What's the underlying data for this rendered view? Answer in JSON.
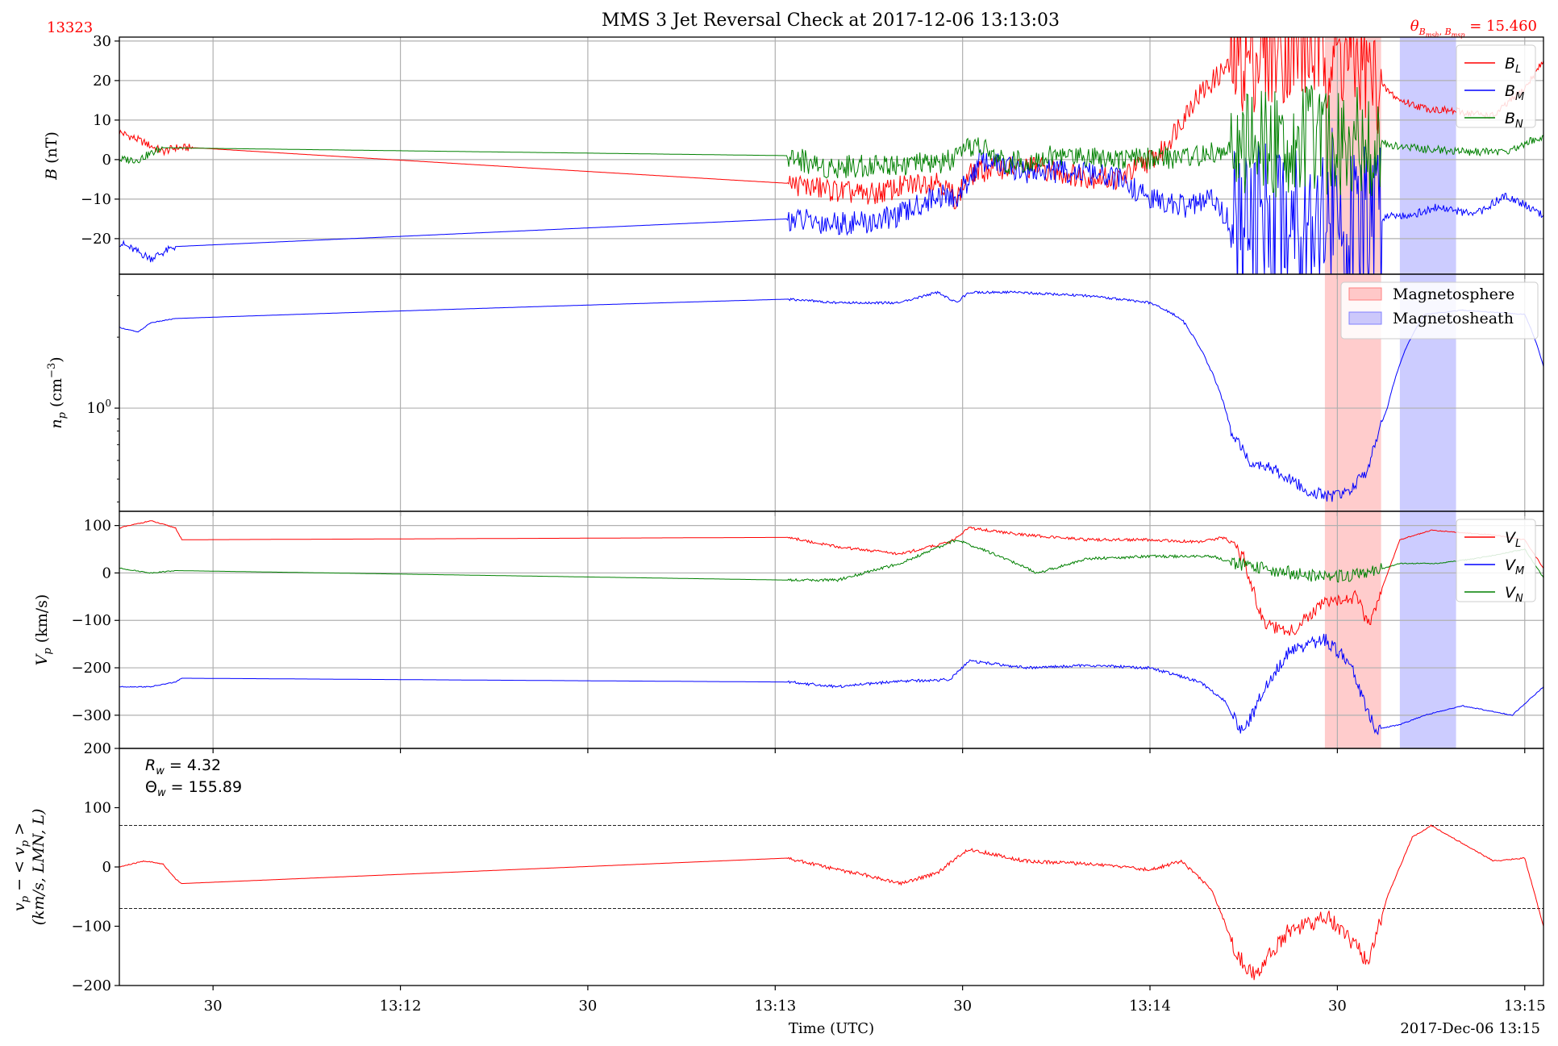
{
  "figure": {
    "title": "MMS 3 Jet Reversal Check at 2017-12-06 13:13:03",
    "event_id": "13323",
    "theta_annotation": "θ_{B_{msh}, B_{msp}} = 15.460",
    "theta_value": 15.46,
    "xlabel": "Time (UTC)",
    "date_label": "2017-Dec-06 13:15"
  },
  "colors": {
    "red": "#ff0000",
    "blue": "#0000ff",
    "green": "#008000",
    "magnetosphere": "#ff8080",
    "magnetosheath": "#8080ff",
    "grid": "#b0b0b0"
  },
  "chart_data": [
    {
      "type": "line",
      "panel": "magnetic-field",
      "ylabel": "B (nT)",
      "ylim": [
        -29,
        31
      ],
      "yticks": [
        -20,
        -10,
        0,
        10,
        20,
        30
      ],
      "ytick_labels": [
        "−20",
        "−10",
        "0",
        "10",
        "20",
        "30"
      ],
      "xlim": [
        "13:11:15",
        "13:15:03"
      ],
      "xticks": [
        "13:11:30",
        "13:12:00",
        "13:12:30",
        "13:13:00",
        "13:13:30",
        "13:14:00",
        "13:14:30",
        "13:15:00"
      ],
      "xtick_labels": [
        "30",
        "13:12",
        "30",
        "13:13",
        "30",
        "13:14",
        "30",
        "13:15"
      ],
      "grid": true,
      "legend_position": "top-right",
      "series": [
        {
          "name": "B_L",
          "color": "red",
          "x": [
            "13:11:15",
            "13:11:18",
            "13:11:22",
            "13:11:24",
            "13:11:27",
            "13:12:30",
            "13:13:02",
            "13:13:10",
            "13:13:15",
            "13:13:20",
            "13:13:26",
            "13:13:29",
            "13:13:31",
            "13:13:35",
            "13:13:42",
            "13:13:48",
            "13:13:55",
            "13:13:58",
            "13:14:02",
            "13:14:05",
            "13:14:07",
            "13:14:12",
            "13:14:20",
            "13:14:28",
            "13:14:33",
            "13:14:36",
            "13:14:40",
            "13:14:44",
            "13:14:50",
            "13:14:55",
            "13:15:00",
            "13:15:03"
          ],
          "y": [
            7,
            5,
            2,
            3,
            3,
            -3,
            -6,
            -8,
            -9,
            -7,
            -5,
            -10,
            -4,
            -2,
            -2,
            -4,
            -5,
            -2,
            2,
            10,
            15,
            23,
            28,
            27,
            25,
            20,
            15,
            13,
            12,
            11,
            18,
            25
          ]
        },
        {
          "name": "B_M",
          "color": "blue",
          "x": [
            "13:11:15",
            "13:11:20",
            "13:11:24",
            "13:13:02",
            "13:13:08",
            "13:13:15",
            "13:13:20",
            "13:13:26",
            "13:13:29",
            "13:13:33",
            "13:13:40",
            "13:13:48",
            "13:13:55",
            "13:14:00",
            "13:14:06",
            "13:14:10",
            "13:14:15",
            "13:14:20",
            "13:14:26",
            "13:14:30",
            "13:14:33",
            "13:14:38",
            "13:14:42",
            "13:14:46",
            "13:14:52",
            "13:14:57",
            "13:15:03"
          ],
          "y": [
            -21,
            -25,
            -22,
            -15,
            -16,
            -16,
            -14,
            -9,
            -10,
            0,
            -3,
            -3,
            -5,
            -10,
            -12,
            -10,
            -20,
            -14,
            -13,
            -14,
            -20,
            -14,
            -14,
            -12,
            -14,
            -9,
            -14
          ]
        },
        {
          "name": "B_N",
          "color": "green",
          "x": [
            "13:11:15",
            "13:11:18",
            "13:11:22",
            "13:13:02",
            "13:13:08",
            "13:13:20",
            "13:13:26",
            "13:13:29",
            "13:13:32",
            "13:13:37",
            "13:13:45",
            "13:13:52",
            "13:13:58",
            "13:14:08",
            "13:14:15",
            "13:14:25",
            "13:14:33",
            "13:14:42",
            "13:14:50",
            "13:14:57",
            "13:15:03"
          ],
          "y": [
            0,
            0,
            3,
            1,
            -2,
            -1,
            -1,
            0,
            4,
            -1,
            1,
            1,
            0,
            1,
            3,
            5,
            5,
            3,
            2,
            2,
            6
          ]
        }
      ]
    },
    {
      "type": "line",
      "panel": "proton-density",
      "ylabel": "n_p (cm^-3)",
      "yscale": "log",
      "ylim": [
        0.365,
        3.7
      ],
      "yticks": [
        1
      ],
      "ytick_labels": [
        "10^0"
      ],
      "xlim": [
        "13:11:15",
        "13:15:03"
      ],
      "grid": true,
      "legend_position": "top-right",
      "legend": [
        {
          "name": "Magnetosphere",
          "color": "magnetosphere"
        },
        {
          "name": "Magnetosheath",
          "color": "magnetosheath"
        }
      ],
      "shaded_intervals": [
        {
          "name": "Magnetosphere",
          "from": "13:14:28",
          "to": "13:14:37",
          "color": "magnetosphere"
        },
        {
          "name": "Magnetosheath",
          "from": "13:14:40",
          "to": "13:14:49",
          "color": "magnetosheath"
        }
      ],
      "series": [
        {
          "name": "n_p",
          "color": "blue",
          "x": [
            "13:11:15",
            "13:11:18",
            "13:11:20",
            "13:11:24",
            "13:13:02",
            "13:13:10",
            "13:13:20",
            "13:13:26",
            "13:13:29",
            "13:13:31",
            "13:13:38",
            "13:13:50",
            "13:14:00",
            "13:14:05",
            "13:14:09",
            "13:14:13",
            "13:14:16",
            "13:14:20",
            "13:14:25",
            "13:14:29",
            "13:14:32",
            "13:14:35",
            "13:14:38",
            "13:14:41",
            "13:14:44",
            "13:14:50",
            "13:15:00",
            "13:15:03"
          ],
          "y": [
            2.2,
            2.1,
            2.3,
            2.4,
            2.9,
            2.8,
            2.8,
            3.1,
            2.8,
            3.1,
            3.1,
            3.0,
            2.8,
            2.4,
            1.6,
            0.8,
            0.6,
            0.55,
            0.45,
            0.42,
            0.45,
            0.55,
            1.0,
            1.8,
            2.5,
            2.6,
            2.5,
            1.5
          ]
        }
      ]
    },
    {
      "type": "line",
      "panel": "proton-velocity",
      "ylabel": "V_p (km/s)",
      "ylim": [
        -370,
        130
      ],
      "yticks": [
        -300,
        -200,
        -100,
        0,
        100
      ],
      "ytick_labels": [
        "−300",
        "−200",
        "−100",
        "0",
        "100"
      ],
      "xlim": [
        "13:11:15",
        "13:15:03"
      ],
      "grid": true,
      "legend_position": "top-right",
      "series": [
        {
          "name": "V_L",
          "color": "red",
          "x": [
            "13:11:15",
            "13:11:20",
            "13:11:24",
            "13:11:25",
            "13:13:02",
            "13:13:10",
            "13:13:20",
            "13:13:28",
            "13:13:31",
            "13:13:40",
            "13:13:50",
            "13:14:00",
            "13:14:08",
            "13:14:12",
            "13:14:15",
            "13:14:18",
            "13:14:22",
            "13:14:28",
            "13:14:33",
            "13:14:35",
            "13:14:40",
            "13:14:45",
            "13:14:50",
            "13:14:55",
            "13:15:00",
            "13:15:03"
          ],
          "y": [
            95,
            110,
            95,
            70,
            75,
            55,
            40,
            65,
            95,
            80,
            70,
            70,
            65,
            75,
            30,
            -100,
            -130,
            -60,
            -50,
            -110,
            70,
            90,
            85,
            80,
            70,
            10
          ]
        },
        {
          "name": "V_M",
          "color": "blue",
          "x": [
            "13:11:15",
            "13:11:20",
            "13:11:24",
            "13:11:25",
            "13:13:02",
            "13:13:10",
            "13:13:20",
            "13:13:28",
            "13:13:31",
            "13:13:40",
            "13:13:50",
            "13:14:00",
            "13:14:08",
            "13:14:12",
            "13:14:15",
            "13:14:18",
            "13:14:22",
            "13:14:25",
            "13:14:28",
            "13:14:32",
            "13:14:36",
            "13:14:40",
            "13:14:44",
            "13:14:50",
            "13:14:58",
            "13:15:03"
          ],
          "y": [
            -240,
            -240,
            -230,
            -222,
            -230,
            -240,
            -228,
            -225,
            -185,
            -200,
            -195,
            -200,
            -230,
            -270,
            -340,
            -250,
            -170,
            -150,
            -140,
            -190,
            -330,
            -320,
            -300,
            -280,
            -300,
            -240
          ]
        },
        {
          "name": "V_N",
          "color": "green",
          "x": [
            "13:11:15",
            "13:11:20",
            "13:11:24",
            "13:13:02",
            "13:13:10",
            "13:13:20",
            "13:13:29",
            "13:13:35",
            "13:13:42",
            "13:13:50",
            "13:14:00",
            "13:14:10",
            "13:14:14",
            "13:14:20",
            "13:14:28",
            "13:14:35",
            "13:14:40",
            "13:14:46",
            "13:14:52",
            "13:15:00",
            "13:15:03"
          ],
          "y": [
            10,
            0,
            5,
            -15,
            -15,
            20,
            70,
            40,
            0,
            30,
            35,
            35,
            20,
            5,
            -10,
            0,
            20,
            20,
            30,
            50,
            -10
          ]
        }
      ]
    },
    {
      "type": "line",
      "panel": "velocity-deviation",
      "ylabel": "v_p − <v_p> (km/s, LMN, L)",
      "ylim": [
        -200,
        200
      ],
      "yticks": [
        -200,
        -100,
        0,
        100,
        200
      ],
      "ytick_labels": [
        "−200",
        "−100",
        "0",
        "100",
        "200"
      ],
      "xlim": [
        "13:11:15",
        "13:15:03"
      ],
      "grid": false,
      "reference_lines": [
        70,
        -70
      ],
      "annotations": [
        "R_w = 4.32",
        "Θ_w = 155.89"
      ],
      "R_w": 4.32,
      "Theta_w": 155.89,
      "series": [
        {
          "name": "v_p - <v_p>",
          "color": "red",
          "x": [
            "13:11:15",
            "13:11:19",
            "13:11:22",
            "13:11:24",
            "13:11:25",
            "13:13:02",
            "13:13:08",
            "13:13:15",
            "13:13:20",
            "13:13:26",
            "13:13:29",
            "13:13:31",
            "13:13:40",
            "13:13:50",
            "13:14:00",
            "13:14:05",
            "13:14:10",
            "13:14:14",
            "13:14:17",
            "13:14:19",
            "13:14:22",
            "13:14:25",
            "13:14:28",
            "13:14:31",
            "13:14:35",
            "13:14:38",
            "13:14:42",
            "13:14:45",
            "13:14:50",
            "13:14:55",
            "13:15:00",
            "13:15:03"
          ],
          "y": [
            0,
            10,
            5,
            -20,
            -28,
            15,
            0,
            -15,
            -28,
            -10,
            15,
            30,
            10,
            5,
            -5,
            10,
            -40,
            -150,
            -185,
            -150,
            -110,
            -100,
            -80,
            -110,
            -160,
            -50,
            50,
            70,
            40,
            10,
            15,
            -100
          ]
        }
      ]
    }
  ]
}
